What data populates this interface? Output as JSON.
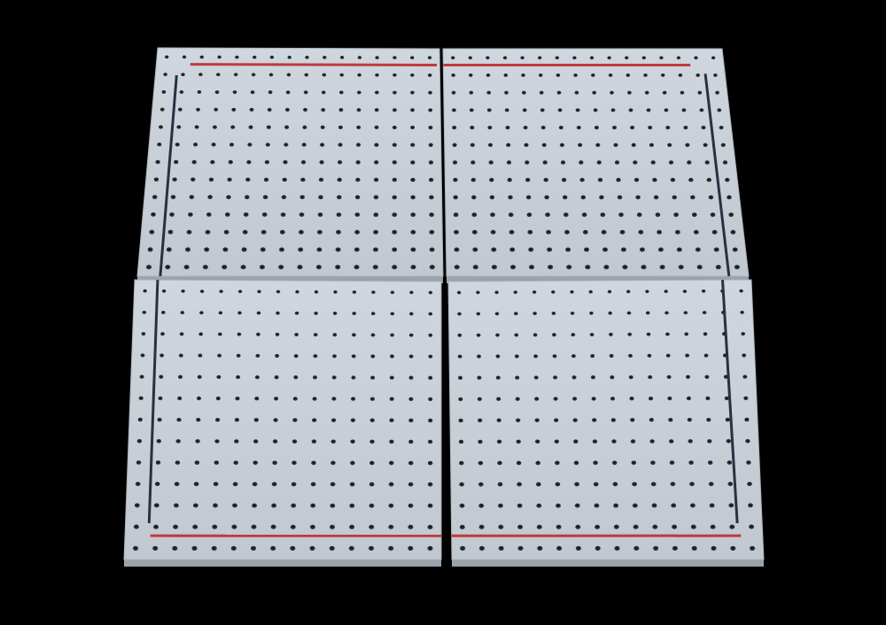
{
  "scene": {
    "description_id": "pegboard-tiles",
    "background_color": "#000000",
    "board_color": "#c9d0d8",
    "board_edge_color": "#9aa2ab",
    "hole_color": "#1c2026",
    "red_stripe_color": "#c0393f",
    "dark_stripe_color": "#2a3040",
    "hole_grid_columns": 16,
    "hole_grid_rows": 13
  },
  "tiles": [
    {
      "id": "tile-top-left",
      "stripe_top": "red",
      "stripe_side": "left-dark"
    },
    {
      "id": "tile-top-right",
      "stripe_top": "red",
      "stripe_side": "right-dark"
    },
    {
      "id": "tile-bottom-left",
      "stripe_bottom": "red",
      "stripe_side": "left-dark"
    },
    {
      "id": "tile-bottom-right",
      "stripe_bottom": "red",
      "stripe_side": "right-dark"
    }
  ]
}
